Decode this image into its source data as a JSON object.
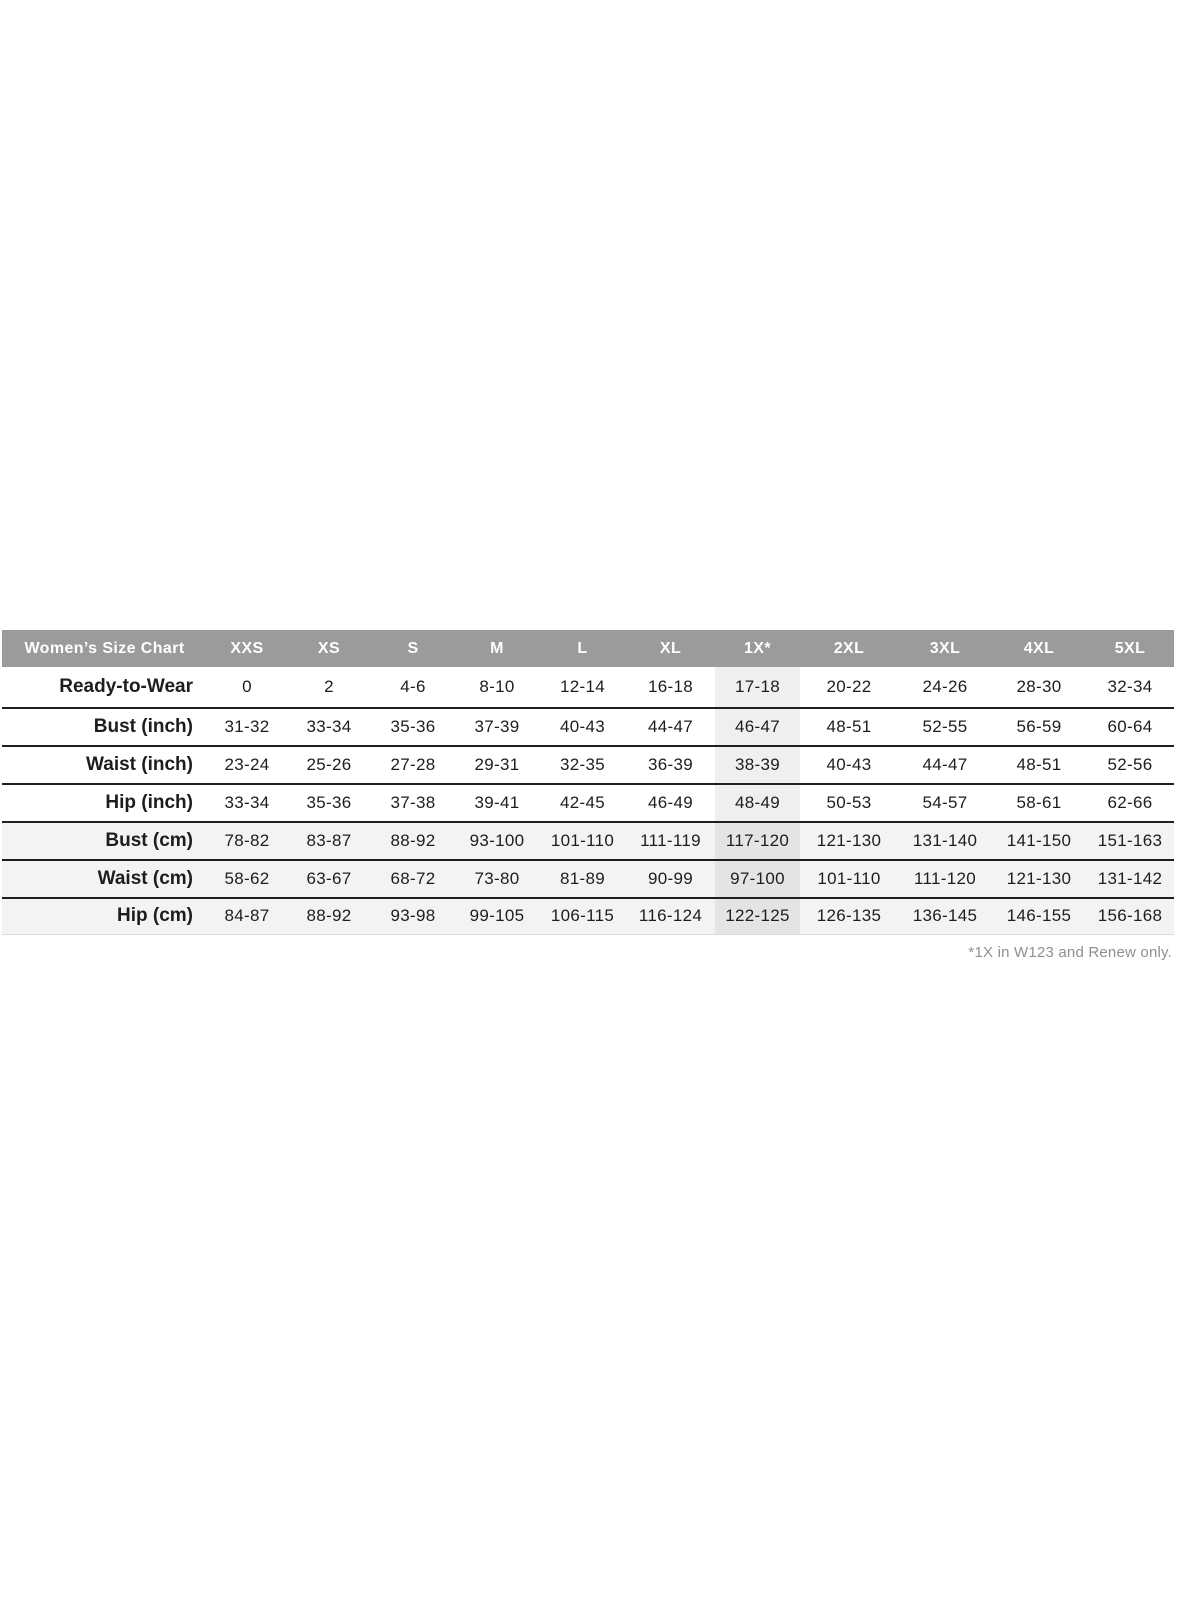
{
  "table": {
    "header": {
      "label": "Women’s Size Chart",
      "columns": [
        "XXS",
        "XS",
        "S",
        "M",
        "L",
        "XL",
        "1X*",
        "2XL",
        "3XL",
        "4XL",
        "5XL"
      ]
    },
    "highlight_column": "1X*",
    "highlight_column_index": 6,
    "rows": [
      {
        "label": "Ready-to-Wear",
        "values": [
          "0",
          "2",
          "4-6",
          "8-10",
          "12-14",
          "16-18",
          "17-18",
          "20-22",
          "24-26",
          "28-30",
          "32-34"
        ]
      },
      {
        "label": "Bust (inch)",
        "values": [
          "31-32",
          "33-34",
          "35-36",
          "37-39",
          "40-43",
          "44-47",
          "46-47",
          "48-51",
          "52-55",
          "56-59",
          "60-64"
        ]
      },
      {
        "label": "Waist (inch)",
        "values": [
          "23-24",
          "25-26",
          "27-28",
          "29-31",
          "32-35",
          "36-39",
          "38-39",
          "40-43",
          "44-47",
          "48-51",
          "52-56"
        ]
      },
      {
        "label": "Hip (inch)",
        "values": [
          "33-34",
          "35-36",
          "37-38",
          "39-41",
          "42-45",
          "46-49",
          "48-49",
          "50-53",
          "54-57",
          "58-61",
          "62-66"
        ]
      },
      {
        "label": "Bust (cm)",
        "values": [
          "78-82",
          "83-87",
          "88-92",
          "93-100",
          "101-110",
          "111-119",
          "117-120",
          "121-130",
          "131-140",
          "141-150",
          "151-163"
        ]
      },
      {
        "label": "Waist (cm)",
        "values": [
          "58-62",
          "63-67",
          "68-72",
          "73-80",
          "81-89",
          "90-99",
          "97-100",
          "101-110",
          "111-120",
          "121-130",
          "131-142"
        ]
      },
      {
        "label": "Hip (cm)",
        "values": [
          "84-87",
          "88-92",
          "93-98",
          "99-105",
          "106-115",
          "116-124",
          "122-125",
          "126-135",
          "136-145",
          "146-155",
          "156-168"
        ]
      }
    ],
    "footnote": "*1X in W123 and Renew only."
  },
  "colors": {
    "header_bg": "#9b9b9b",
    "header_text": "#ffffff",
    "body_text": "#1d1d1d",
    "row_line": "#1f1f1f",
    "cm_row_stripe": "#f3f3f3",
    "highlight_column_bg": "#efefef",
    "highlight_on_stripe_bg": "#e4e4e4",
    "footnote_text": "#8f8f8f"
  }
}
